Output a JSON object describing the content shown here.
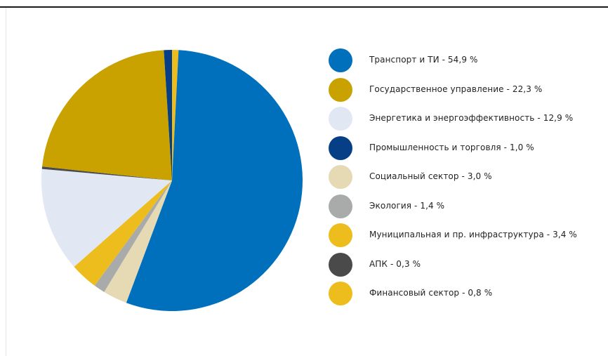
{
  "chart_data": {
    "type": "pie",
    "start_angle_deg": 0,
    "direction": "clockwise",
    "legend_position": "right",
    "slices": [
      {
        "label": "Транспорт и ТИ - 54,9 %",
        "value": 54.9,
        "color": "#0070bc"
      },
      {
        "label": "Государственное управление - 22,3 %",
        "value": 22.3,
        "color": "#c9a200"
      },
      {
        "label": "Энергетика и энергоэффективность - 12,9 %",
        "value": 12.9,
        "color": "#e1e8f4"
      },
      {
        "label": "Промышленность и торговля - 1,0 %",
        "value": 1.0,
        "color": "#073f87"
      },
      {
        "label": "Социальный сектор - 3,0 %",
        "value": 3.0,
        "color": "#e6dab5"
      },
      {
        "label": "Экология - 1,4 %",
        "value": 1.4,
        "color": "#a9abab"
      },
      {
        "label": "Муниципальная и пр. инфраструктура - 3,4 %",
        "value": 3.4,
        "color": "#ecbd1c"
      },
      {
        "label": "АПК - 0,3 %",
        "value": 0.3,
        "color": "#4a4a4a"
      },
      {
        "label": "Финансовый сектор - 0,8 %",
        "value": 0.8,
        "color": "#ecbd1c"
      }
    ],
    "pie_order": [
      "Финансовый сектор - 0,8 %",
      "Транспорт и ТИ - 54,9 %",
      "Социальный сектор - 3,0 %",
      "Экология - 1,4 %",
      "Муниципальная и пр. инфраструктура - 3,4 %",
      "Энергетика и энергоэффективность - 12,9 %",
      "АПК - 0,3 %",
      "Государственное управление - 22,3 %",
      "Промышленность и торговля - 1,0 %"
    ]
  }
}
